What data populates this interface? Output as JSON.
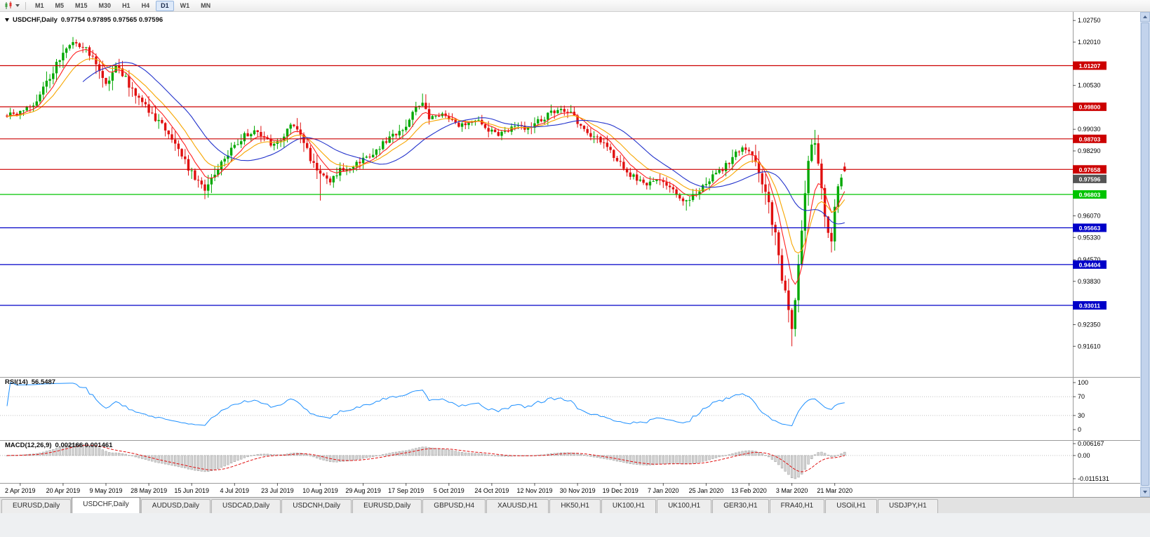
{
  "toolbar": {
    "timeframes": [
      {
        "label": "M1",
        "active": false
      },
      {
        "label": "M5",
        "active": false
      },
      {
        "label": "M15",
        "active": false
      },
      {
        "label": "M30",
        "active": false
      },
      {
        "label": "H1",
        "active": false
      },
      {
        "label": "H4",
        "active": false
      },
      {
        "label": "D1",
        "active": true
      },
      {
        "label": "W1",
        "active": false
      },
      {
        "label": "MN",
        "active": false
      }
    ]
  },
  "main": {
    "symbol_label": "USDCHF,Daily",
    "ohlc_values": "0.97754 0.97895 0.97565 0.97596"
  },
  "rsi": {
    "label": "RSI(14)",
    "value": "56.5487"
  },
  "macd": {
    "label": "MACD(12,26,9)",
    "values": "0.002166 0.001461"
  },
  "tabbar": {
    "tabs": [
      {
        "label": "EURUSD,Daily",
        "active": false
      },
      {
        "label": "USDCHF,Daily",
        "active": true
      },
      {
        "label": "AUDUSD,Daily",
        "active": false
      },
      {
        "label": "USDCAD,Daily",
        "active": false
      },
      {
        "label": "USDCNH,Daily",
        "active": false
      },
      {
        "label": "EURUSD,Daily",
        "active": false
      },
      {
        "label": "GBPUSD,H4",
        "active": false
      },
      {
        "label": "XAUUSD,H1",
        "active": false
      },
      {
        "label": "HK50,H1",
        "active": false
      },
      {
        "label": "UK100,H1",
        "active": false
      },
      {
        "label": "UK100,H1",
        "active": false
      },
      {
        "label": "GER30,H1",
        "active": false
      },
      {
        "label": "FRA40,H1",
        "active": false
      },
      {
        "label": "USOil,H1",
        "active": false
      },
      {
        "label": "USDJPY,H1",
        "active": false
      }
    ]
  },
  "chart_data": {
    "type": "candlestick",
    "symbol": "USDCHF",
    "timeframe": "Daily",
    "open": 0.97754,
    "high": 0.97895,
    "low": 0.97565,
    "close": 0.97596,
    "x_labels": [
      "2 Apr 2019",
      "20 Apr 2019",
      "9 May 2019",
      "28 May 2019",
      "15 Jun 2019",
      "4 Jul 2019",
      "23 Jul 2019",
      "10 Aug 2019",
      "29 Aug 2019",
      "17 Sep 2019",
      "5 Oct 2019",
      "24 Oct 2019",
      "12 Nov 2019",
      "30 Nov 2019",
      "19 Dec 2019",
      "7 Jan 2020",
      "25 Jan 2020",
      "13 Feb 2020",
      "3 Mar 2020",
      "21 Mar 2020"
    ],
    "y_ticks": [
      "1.02750",
      "1.02010",
      "1.00530",
      "0.99030",
      "0.98290",
      "0.96070",
      "0.95330",
      "0.94570",
      "0.93830",
      "0.92350",
      "0.91610"
    ],
    "hlines": [
      {
        "price": 1.01207,
        "label": "1.01207",
        "color": "#cc0000"
      },
      {
        "price": 0.998,
        "label": "0.99800",
        "color": "#cc0000"
      },
      {
        "price": 0.98703,
        "label": "0.98703",
        "color": "#cc0000"
      },
      {
        "price": 0.97658,
        "label": "0.97658",
        "color": "#cc0000"
      },
      {
        "price": 0.96803,
        "label": "0.96803",
        "color": "#00c400"
      },
      {
        "price": 0.95663,
        "label": "0.95663",
        "color": "#0000c8"
      },
      {
        "price": 0.94404,
        "label": "0.94404",
        "color": "#0000c8"
      },
      {
        "price": 0.93011,
        "label": "0.93011",
        "color": "#0000c8"
      }
    ],
    "current_price": {
      "label": "0.97596",
      "color": "#555555"
    },
    "num_candles": 255,
    "label_every": 13,
    "label_offset": 4,
    "anchors": [
      [
        0,
        0.995
      ],
      [
        3,
        0.9958
      ],
      [
        6,
        0.9975
      ],
      [
        9,
        1.0
      ],
      [
        12,
        1.006
      ],
      [
        15,
        1.013
      ],
      [
        18,
        1.019
      ],
      [
        21,
        1.02
      ],
      [
        24,
        1.0175
      ],
      [
        27,
        1.013
      ],
      [
        30,
        1.0055
      ],
      [
        33,
        1.0118
      ],
      [
        36,
        1.0075
      ],
      [
        39,
        1.002
      ],
      [
        42,
        0.9985
      ],
      [
        45,
        0.994
      ],
      [
        48,
        0.99
      ],
      [
        51,
        0.9855
      ],
      [
        54,
        0.979
      ],
      [
        57,
        0.9735
      ],
      [
        60,
        0.97
      ],
      [
        63,
        0.976
      ],
      [
        66,
        0.9805
      ],
      [
        69,
        0.9845
      ],
      [
        72,
        0.988
      ],
      [
        75,
        0.9895
      ],
      [
        78,
        0.987
      ],
      [
        81,
        0.9845
      ],
      [
        84,
        0.9885
      ],
      [
        87,
        0.992
      ],
      [
        89,
        0.989
      ],
      [
        92,
        0.98
      ],
      [
        95,
        0.9745
      ],
      [
        98,
        0.972
      ],
      [
        101,
        0.9765
      ],
      [
        104,
        0.9775
      ],
      [
        107,
        0.979
      ],
      [
        110,
        0.9815
      ],
      [
        113,
        0.9845
      ],
      [
        116,
        0.987
      ],
      [
        119,
        0.9895
      ],
      [
        122,
        0.9935
      ],
      [
        124,
        0.9975
      ],
      [
        126,
        0.999
      ],
      [
        128,
        0.994
      ],
      [
        131,
        0.9955
      ],
      [
        134,
        0.9935
      ],
      [
        137,
        0.9915
      ],
      [
        140,
        0.993
      ],
      [
        143,
        0.994
      ],
      [
        146,
        0.9905
      ],
      [
        149,
        0.988
      ],
      [
        152,
        0.99
      ],
      [
        155,
        0.9915
      ],
      [
        158,
        0.9905
      ],
      [
        161,
        0.993
      ],
      [
        164,
        0.995
      ],
      [
        167,
        0.9975
      ],
      [
        170,
        0.9965
      ],
      [
        173,
        0.993
      ],
      [
        176,
        0.9895
      ],
      [
        179,
        0.987
      ],
      [
        182,
        0.9845
      ],
      [
        185,
        0.98
      ],
      [
        188,
        0.976
      ],
      [
        191,
        0.973
      ],
      [
        194,
        0.9715
      ],
      [
        197,
        0.973
      ],
      [
        200,
        0.9705
      ],
      [
        203,
        0.968
      ],
      [
        206,
        0.9655
      ],
      [
        209,
        0.969
      ],
      [
        212,
        0.972
      ],
      [
        215,
        0.975
      ],
      [
        218,
        0.978
      ],
      [
        221,
        0.982
      ],
      [
        223,
        0.9838
      ],
      [
        225,
        0.9825
      ],
      [
        227,
        0.978
      ],
      [
        229,
        0.9725
      ],
      [
        231,
        0.964
      ],
      [
        233,
        0.954
      ],
      [
        235,
        0.94
      ],
      [
        236,
        0.9345
      ],
      [
        237,
        0.929
      ],
      [
        238,
        0.9215
      ],
      [
        239,
        0.932
      ],
      [
        240,
        0.945
      ],
      [
        241,
        0.957
      ],
      [
        242,
        0.968
      ],
      [
        243,
        0.978
      ],
      [
        244,
        0.985
      ],
      [
        245,
        0.987
      ],
      [
        246,
        0.98
      ],
      [
        247,
        0.971
      ],
      [
        248,
        0.962
      ],
      [
        249,
        0.955
      ],
      [
        250,
        0.9535
      ],
      [
        251,
        0.964
      ],
      [
        252,
        0.971
      ],
      [
        253,
        0.974
      ],
      [
        254,
        0.97596
      ]
    ],
    "wick_low_overrides": {
      "60": 0.9664,
      "95": 0.9659,
      "206": 0.9625,
      "238": 0.9161,
      "250": 0.9495
    },
    "wick_high_overrides": {
      "21": 1.021,
      "126": 1.0025,
      "245": 0.9901
    },
    "last_candle": {
      "o": 0.97754,
      "h": 0.97895,
      "l": 0.97565,
      "c": 0.97596
    },
    "candle_up_color": "#00a800",
    "candle_down_color": "#e01010",
    "moving_averages": [
      {
        "type": "ema",
        "period": 7,
        "color": "#ff2020"
      },
      {
        "type": "ema",
        "period": 14,
        "color": "#f7a600"
      },
      {
        "type": "sma",
        "period": 24,
        "color": "#2333cc"
      }
    ],
    "rsi": {
      "period": 14,
      "color": "#1e90ff",
      "levels": [
        70,
        30
      ],
      "axis_labels": [
        {
          "v": 100,
          "label": "100"
        },
        {
          "v": 70,
          "label": "70"
        },
        {
          "v": 30,
          "label": "30"
        },
        {
          "v": 0,
          "label": "0"
        }
      ]
    },
    "macd": {
      "fast": 12,
      "slow": 26,
      "signal": 9,
      "hist_fill": "#d4d4d4",
      "hist_stroke": "#9a9a9a",
      "signal_color": "#e01010",
      "axis_top_label": "0.006167",
      "axis_zero_label": "0.00",
      "axis_bottom_label": "-0.0115131"
    }
  }
}
